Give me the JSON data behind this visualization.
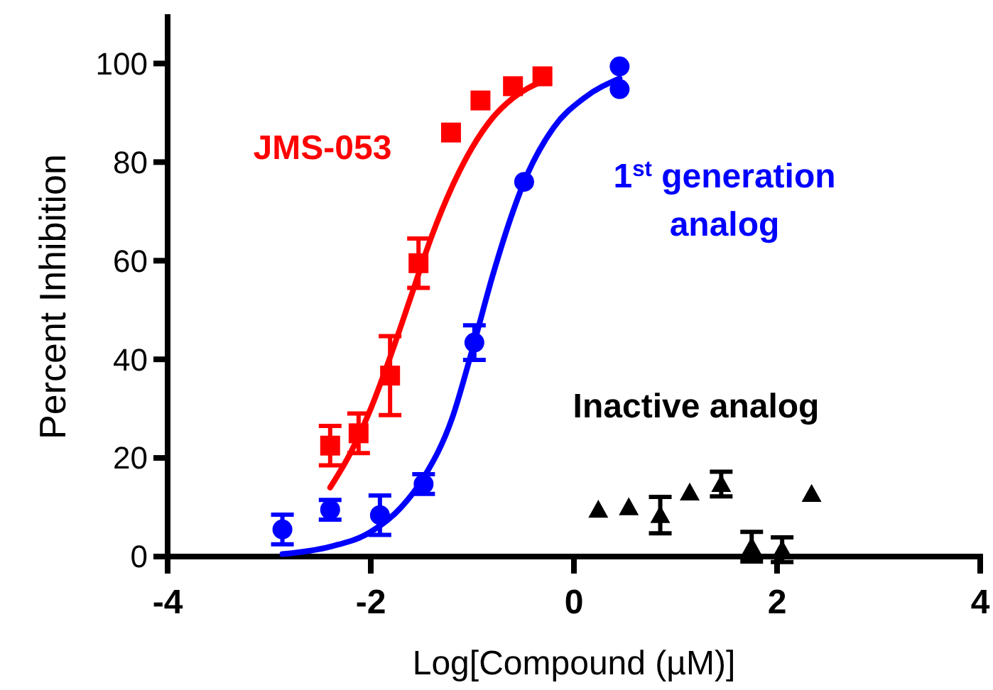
{
  "chart_data": {
    "type": "scatter",
    "xlabel": "Log[Compound (µM)]",
    "ylabel": "Percent Inhibition",
    "xlim": [
      -4,
      4
    ],
    "xticks": [
      -4,
      -2,
      0,
      2,
      4
    ],
    "ylim": [
      0,
      110
    ],
    "yticks": [
      0,
      20,
      40,
      60,
      80,
      100
    ],
    "grid": false,
    "legend": false,
    "series": [
      {
        "name": "JMS-053",
        "color": "#ff0000",
        "marker": "square",
        "x": [
          -2.4,
          -2.12,
          -1.81,
          -1.53,
          -1.21,
          -0.92,
          -0.6,
          -0.31
        ],
        "values": [
          22.5,
          25,
          36.7,
          59.5,
          86,
          92.5,
          95.4,
          97.4
        ],
        "errors": [
          4,
          4,
          8,
          5,
          null,
          null,
          null,
          null
        ]
      },
      {
        "name": "1$^{st}$ generation analog",
        "color": "#0000ff",
        "marker": "circle",
        "x": [
          -2.87,
          -2.4,
          -1.91,
          -1.48,
          -0.98,
          -0.49,
          0.45,
          0.45
        ],
        "values": [
          5.5,
          9.5,
          8.4,
          14.7,
          43.4,
          76,
          99.4,
          94.8
        ],
        "errors": [
          3,
          2,
          4,
          2,
          3.5,
          null,
          null,
          null
        ]
      },
      {
        "name": "Inactive analog",
        "color": "#000000",
        "marker": "triangle",
        "x": [
          0.24,
          0.54,
          0.85,
          1.14,
          1.45,
          1.75,
          2.05,
          2.34
        ],
        "values": [
          9.5,
          10,
          8.4,
          13,
          14.7,
          2,
          1.4,
          12.7
        ],
        "errors": [
          null,
          null,
          3.7,
          null,
          2.5,
          3,
          2.5,
          null
        ]
      },
      {
        "type": "line",
        "color": "#ff0000",
        "marker": "none",
        "line_style": "solid",
        "x": [
          -2.4,
          -2.2,
          -2.0,
          -1.8,
          -1.6,
          -1.4,
          -1.2,
          -1.0,
          -0.8,
          -0.6,
          -0.3
        ],
        "values": [
          14,
          21,
          30,
          41,
          53,
          65,
          75,
          83,
          89,
          93,
          96.5
        ]
      },
      {
        "type": "line",
        "color": "#0000ff",
        "marker": "none",
        "line_style": "solid",
        "x": [
          -2.87,
          -2.4,
          -2.0,
          -1.7,
          -1.48,
          -1.2,
          -1.0,
          -0.8,
          -0.6,
          -0.49,
          -0.2,
          0.1,
          0.45
        ],
        "values": [
          0.5,
          2,
          5,
          10,
          16,
          28,
          42,
          57,
          70,
          76,
          87,
          93,
          97
        ]
      }
    ]
  }
}
